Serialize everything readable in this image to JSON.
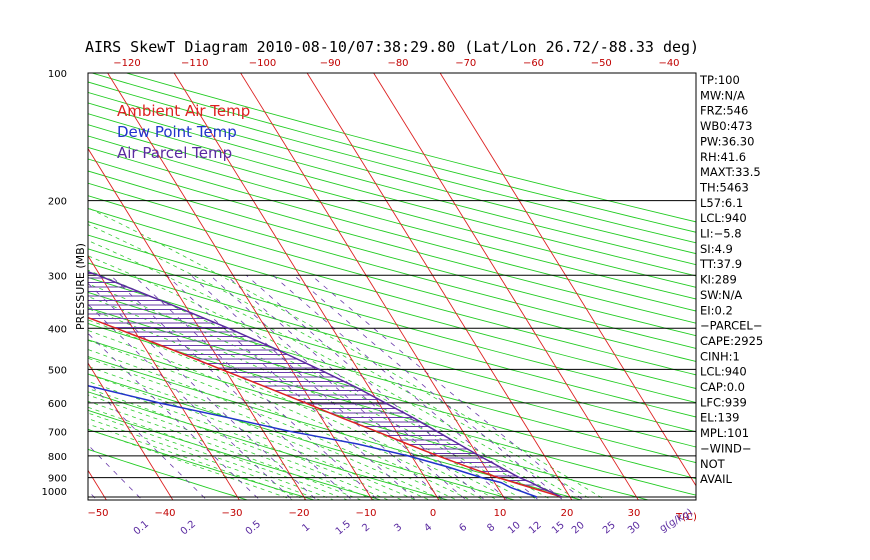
{
  "chart_data": {
    "type": "skew-t",
    "title": "AIRS SkewT Diagram 2010-08-10/07:38:29.80 (Lat/Lon 26.72/-88.33 deg)",
    "ylabel": "PRESSURE (MB)",
    "pressure_levels": [
      100,
      200,
      300,
      400,
      500,
      600,
      700,
      800,
      900,
      1000
    ],
    "pressure_labels": [
      "100",
      "200",
      "300",
      "400",
      "500",
      "600",
      "700",
      "800",
      "900",
      "1000"
    ],
    "top_temp_ticks": [
      -120,
      -110,
      -100,
      -90,
      -80,
      -70,
      -60,
      -50,
      -40
    ],
    "top_temp_labels": [
      "−120",
      "−110",
      "−100",
      "−90",
      "−80",
      "−70",
      "−60",
      "−50",
      "−40"
    ],
    "bottom_temp_ticks": [
      -50,
      -40,
      -30,
      -20,
      -10,
      0,
      10,
      20,
      30
    ],
    "bottom_temp_labels": [
      "−50",
      "−40",
      "−30",
      "−20",
      "−10",
      "0",
      "10",
      "20",
      "30"
    ],
    "temp_unit_label": "T(C)",
    "mixing_ratio_ticks": [
      0.1,
      0.2,
      0.5,
      1,
      1.5,
      2,
      3,
      4,
      6,
      8,
      10,
      12,
      15,
      20,
      25,
      30
    ],
    "mixing_ratio_labels": [
      "0.1",
      "0.2",
      "0.5",
      "1",
      "1.5",
      "2",
      "3",
      "4",
      "6",
      "8",
      "10",
      "12",
      "15",
      "20",
      "25",
      "30"
    ],
    "mixing_ratio_unit": "g(g/kg)",
    "legend": [
      {
        "label": "Ambient Air Temp",
        "color": "#dd2222"
      },
      {
        "label": "Dew Point Temp",
        "color": "#2233cc"
      },
      {
        "label": "Air Parcel Temp",
        "color": "#5a2aa0"
      }
    ],
    "series": [
      {
        "name": "Ambient Air Temp",
        "color": "#dd2222",
        "p": [
          1000,
          950,
          925,
          900,
          850,
          800,
          750,
          700,
          650,
          600,
          550,
          500,
          450,
          400,
          350,
          300,
          250,
          225,
          200,
          175,
          150,
          125,
          100
        ],
        "t": [
          28.8,
          25,
          23,
          21,
          17.5,
          14,
          10.5,
          7,
          3,
          -1,
          -5.5,
          -10.5,
          -16,
          -22.5,
          -30,
          -38.5,
          -48.5,
          -54,
          -60,
          -67,
          -76.5,
          -74,
          -66
        ]
      },
      {
        "name": "Dew Point Temp",
        "color": "#2233cc",
        "p": [
          1000,
          950,
          925,
          900,
          850,
          800,
          750,
          700,
          650,
          600,
          550,
          500,
          450,
          400,
          350,
          300,
          250,
          200,
          175,
          150,
          125,
          100
        ],
        "t": [
          25,
          22,
          21,
          18.5,
          14.5,
          9.5,
          3,
          -6,
          -14,
          -23,
          -31.5,
          -41,
          -47,
          -53,
          -60,
          -67.5,
          -76,
          -83,
          -88,
          -92,
          -96,
          -102
        ]
      },
      {
        "name": "Air Parcel Temp",
        "color": "#5a2aa0",
        "p": [
          1000,
          950,
          925,
          900,
          850,
          800,
          750,
          700,
          650,
          600,
          550,
          500,
          450,
          400,
          350,
          300,
          250,
          225,
          200,
          175,
          150,
          125,
          100
        ],
        "t": [
          28.8,
          26.5,
          25.5,
          24.2,
          22.3,
          20.2,
          18.2,
          16.1,
          13.8,
          11,
          8,
          4.2,
          -0.2,
          -5.6,
          -12.3,
          -20.3,
          -31.5,
          -38.2,
          -46,
          -55.3,
          -67,
          -80.5,
          -97
        ]
      }
    ],
    "indices": [
      "TP:100",
      "MW:N/A",
      "FRZ:546",
      "WB0:473",
      "PW:36.30",
      "RH:41.6",
      "MAXT:33.5",
      "TH:5463",
      "L57:6.1",
      "LCL:940",
      "LI:−5.8",
      "SI:4.9",
      "TT:37.9",
      "KI:289",
      "SW:N/A",
      "EI:0.2",
      "−PARCEL−",
      "CAPE:2925",
      "CINH:1",
      "LCL:940",
      "CAP:0.0",
      "LFC:939",
      "EL:139",
      "MPL:101",
      "−WIND−",
      "NOT",
      "AVAIL"
    ],
    "grid": true
  }
}
